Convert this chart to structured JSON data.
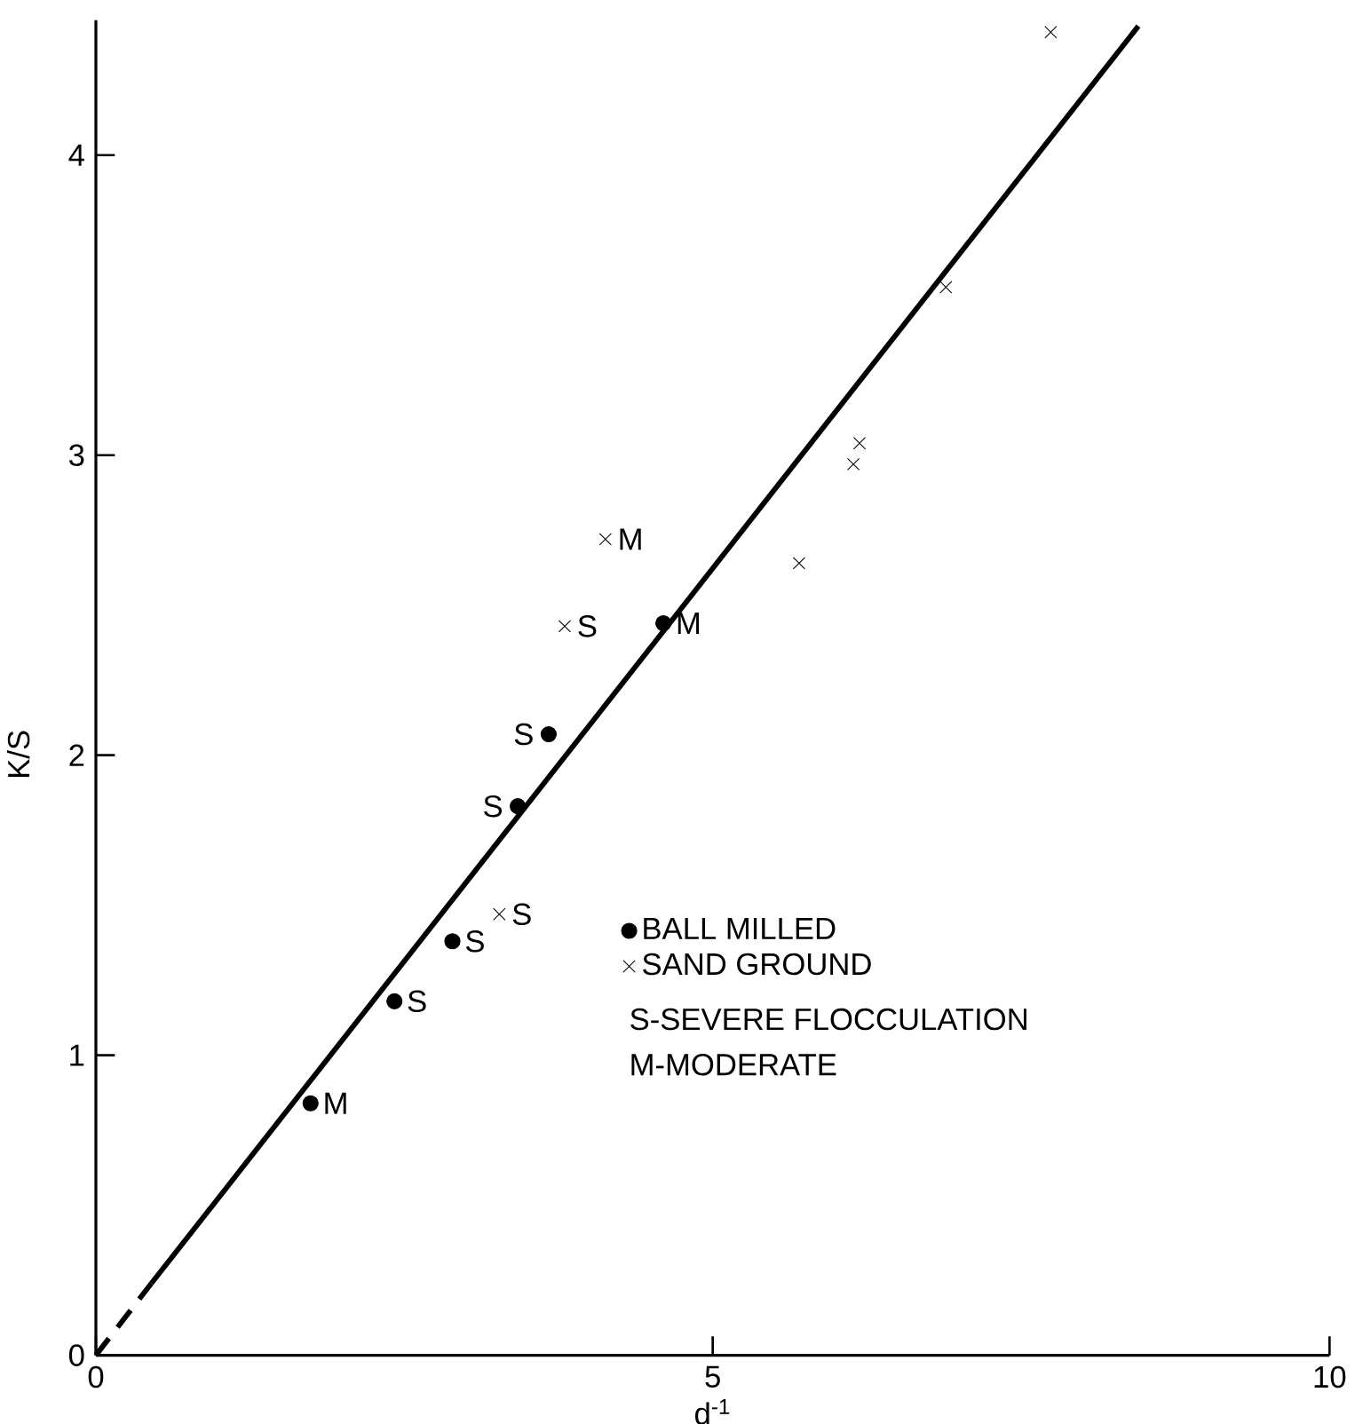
{
  "chart_data": {
    "type": "scatter",
    "xlabel": "d$^{-1}$",
    "ylabel": "K/S",
    "xlim": [
      0,
      10
    ],
    "ylim": [
      0,
      4.45
    ],
    "xticks": [
      0,
      5,
      10
    ],
    "yticks": [
      0,
      1,
      2,
      3,
      4
    ],
    "grid": false,
    "legend": "right",
    "series": [
      {
        "name": "BALL MILLED",
        "color": "#000000",
        "marker": "circle",
        "x": [
          1.74,
          2.42,
          2.89,
          3.42,
          3.67,
          4.6
        ],
        "values": [
          0.84,
          1.18,
          1.38,
          1.83,
          2.07,
          2.44
        ]
      },
      {
        "name": "SAND GROUND",
        "color": "#000000",
        "marker": "cross",
        "x": [
          3.27,
          3.8,
          4.13,
          5.7,
          6.14,
          6.19,
          6.89,
          7.74
        ],
        "values": [
          1.47,
          2.43,
          2.72,
          2.64,
          2.97,
          3.04,
          3.56,
          4.41
        ]
      },
      {
        "type": "line",
        "color": "#000000",
        "marker": "none",
        "line_style": "dashed",
        "x": [
          0,
          0.45
        ],
        "values": [
          0,
          0.24
        ]
      },
      {
        "type": "line",
        "color": "#000000",
        "marker": "none",
        "line_style": "solid",
        "x": [
          0.45,
          8.45
        ],
        "values": [
          0.24,
          4.43
        ]
      }
    ],
    "annotations": [
      {
        "text": "M",
        "x": 1.74,
        "y": 0.84
      },
      {
        "text": "S",
        "x": 2.42,
        "y": 1.18
      },
      {
        "text": "S",
        "x": 2.89,
        "y": 1.38
      },
      {
        "text": "S",
        "x": 3.42,
        "y": 1.83
      },
      {
        "text": "S",
        "x": 3.67,
        "y": 2.07
      },
      {
        "text": "M",
        "x": 4.6,
        "y": 2.44
      },
      {
        "text": "S",
        "x": 3.27,
        "y": 1.47
      },
      {
        "text": "S",
        "x": 3.8,
        "y": 2.43
      },
      {
        "text": "M",
        "x": 4.13,
        "y": 2.72
      },
      "S-SEVERE FLOCCULATION",
      "M-MODERATE"
    ]
  }
}
